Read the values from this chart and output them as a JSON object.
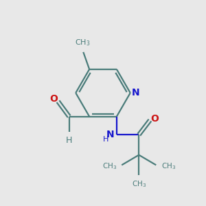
{
  "background_color": "#e8e8e8",
  "bond_color": "#4a7c7a",
  "N_color": "#1515cc",
  "O_color": "#cc1515",
  "text_color": "#4a7c7a",
  "figsize": [
    3.0,
    3.0
  ],
  "dpi": 100,
  "xlim": [
    0,
    10
  ],
  "ylim": [
    0,
    10
  ]
}
